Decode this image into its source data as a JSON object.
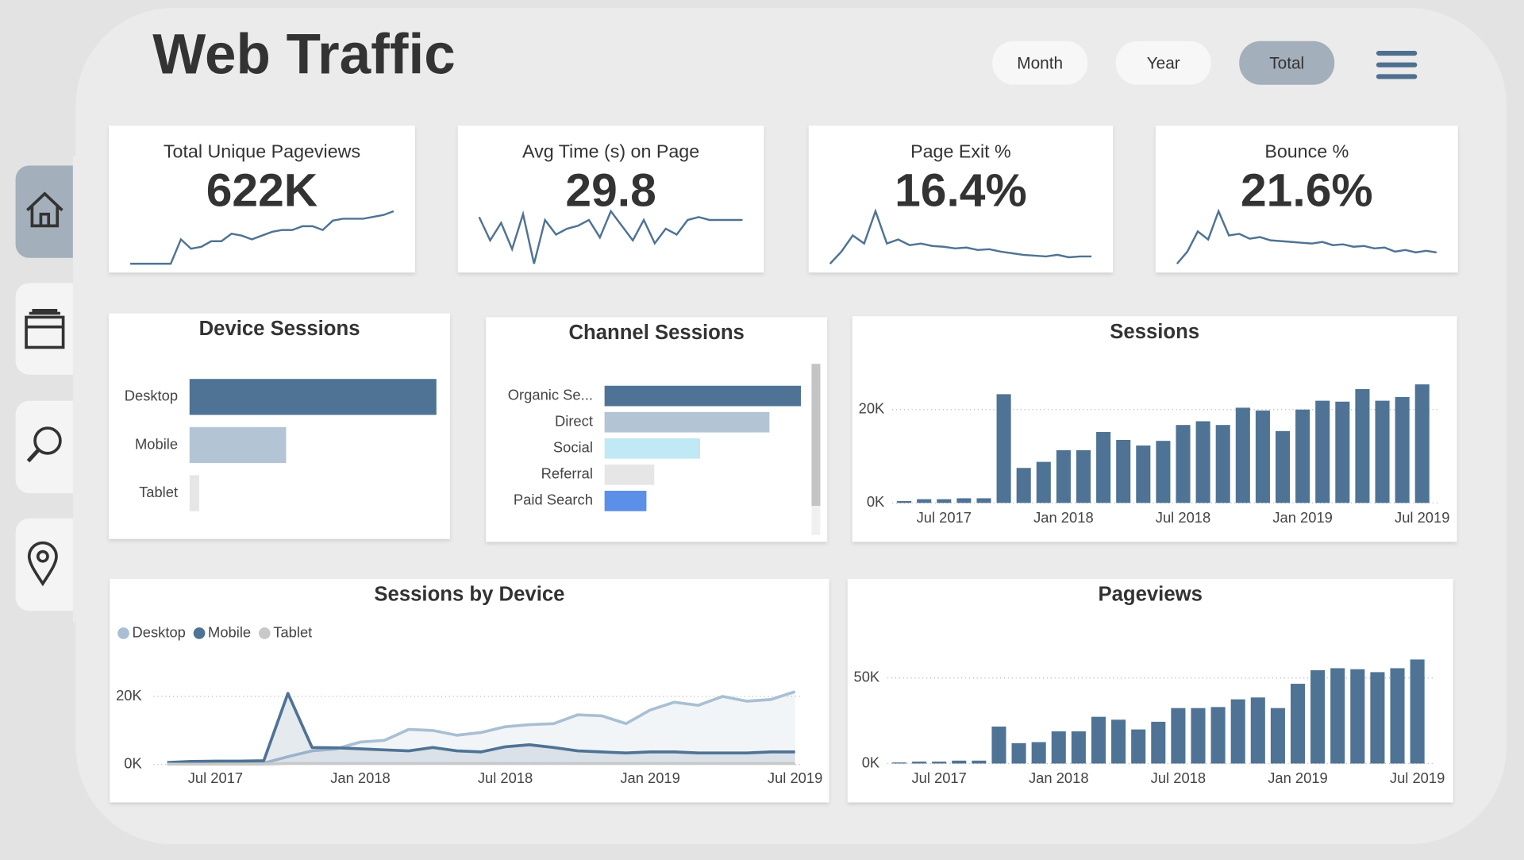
{
  "header": {
    "title": "Web Traffic",
    "buttons": [
      "Month",
      "Year",
      "Total"
    ],
    "selected": "Total"
  },
  "kpis": [
    {
      "label": "Total Unique Pageviews",
      "value": "622K",
      "trend": [
        1,
        1,
        1,
        1,
        1,
        14,
        9,
        10,
        13,
        13,
        17,
        16,
        14,
        16,
        18,
        19,
        19,
        21,
        21,
        19,
        24,
        25,
        25,
        25,
        26,
        27,
        29
      ]
    },
    {
      "label": "Avg Time (s) on Page",
      "value": "29.8",
      "trend": [
        32,
        24,
        30,
        21,
        33,
        16,
        31,
        26,
        28,
        29,
        31,
        25,
        34,
        29,
        24,
        31,
        23,
        28,
        26,
        31,
        32,
        31,
        31,
        31,
        31
      ]
    },
    {
      "label": "Page Exit %",
      "value": "16.4%",
      "trend": [
        5,
        20,
        40,
        30,
        70,
        30,
        35,
        28,
        30,
        27,
        26,
        24,
        25,
        22,
        23,
        20,
        18,
        16,
        15,
        14,
        16,
        13,
        14,
        14
      ]
    },
    {
      "label": "Bounce %",
      "value": "21.6%",
      "trend": [
        5,
        20,
        45,
        35,
        70,
        40,
        42,
        36,
        38,
        34,
        33,
        32,
        31,
        30,
        32,
        28,
        29,
        26,
        27,
        24,
        25,
        20,
        22,
        19,
        21,
        19
      ]
    }
  ],
  "chart_data": [
    {
      "type": "hbar",
      "title": "Device Sessions",
      "categories": [
        "Desktop",
        "Mobile",
        "Tablet"
      ],
      "values": [
        230000,
        90000,
        9000
      ],
      "colors": [
        "#4f7394",
        "#b3c5d5",
        "#e6e6e6"
      ]
    },
    {
      "type": "hbar",
      "title": "Channel Sessions",
      "categories": [
        "Organic Se...",
        "Direct",
        "Social",
        "Referral",
        "Paid Search"
      ],
      "values": [
        150000,
        126000,
        73000,
        38000,
        32000
      ],
      "colors": [
        "#4f7394",
        "#b3c5d5",
        "#c1e9f5",
        "#e6e6e6",
        "#5b8fe8"
      ]
    },
    {
      "type": "bar",
      "title": "Sessions",
      "x": [
        "2017-05",
        "2017-06",
        "2017-07",
        "2017-08",
        "2017-09",
        "2017-10",
        "2017-11",
        "2017-12",
        "2018-01",
        "2018-02",
        "2018-03",
        "2018-04",
        "2018-05",
        "2018-06",
        "2018-07",
        "2018-08",
        "2018-09",
        "2018-10",
        "2018-11",
        "2018-12",
        "2019-01",
        "2019-02",
        "2019-03",
        "2019-04",
        "2019-05",
        "2019-06",
        "2019-07"
      ],
      "values": [
        400,
        800,
        800,
        1000,
        1000,
        23300,
        7500,
        8800,
        11300,
        11300,
        15200,
        13500,
        12300,
        13300,
        16700,
        17500,
        16700,
        20400,
        19800,
        15400,
        20000,
        21900,
        21700,
        24400,
        21900,
        22700,
        25400
      ],
      "color": "#4f7394",
      "ylim": [
        0,
        26000
      ],
      "yticks": [
        {
          "value": 0,
          "label": "0K"
        },
        {
          "value": 20000,
          "label": "20K"
        }
      ],
      "xticks": [
        {
          "value": "2017-07",
          "label": "Jul 2017"
        },
        {
          "value": "2018-01",
          "label": "Jan 2018"
        },
        {
          "value": "2018-07",
          "label": "Jul 2018"
        },
        {
          "value": "2019-01",
          "label": "Jan 2019"
        },
        {
          "value": "2019-07",
          "label": "Jul 2019"
        }
      ],
      "grid": true
    },
    {
      "type": "line",
      "title": "Sessions by Device",
      "x": [
        "2017-05",
        "2017-06",
        "2017-07",
        "2017-08",
        "2017-09",
        "2017-10",
        "2017-11",
        "2017-12",
        "2018-01",
        "2018-02",
        "2018-03",
        "2018-04",
        "2018-05",
        "2018-06",
        "2018-07",
        "2018-08",
        "2018-09",
        "2018-10",
        "2018-11",
        "2018-12",
        "2019-01",
        "2019-02",
        "2019-03",
        "2019-04",
        "2019-05",
        "2019-06",
        "2019-07"
      ],
      "series": [
        {
          "name": "Desktop",
          "color": "#a9bfd3",
          "values": [
            200,
            300,
            300,
            400,
            400,
            2300,
            4000,
            4600,
            6600,
            7100,
            10300,
            10000,
            8600,
            9400,
            11100,
            11700,
            12000,
            14600,
            14300,
            12000,
            16000,
            18300,
            17400,
            20000,
            18600,
            19100,
            21400
          ]
        },
        {
          "name": "Mobile",
          "color": "#4f7394",
          "values": [
            600,
            900,
            1000,
            1000,
            1100,
            20900,
            5000,
            4900,
            4600,
            4300,
            4000,
            5000,
            4000,
            3700,
            5200,
            5800,
            5000,
            4000,
            3700,
            3400,
            3700,
            3700,
            3400,
            3400,
            3400,
            3700,
            3700
          ]
        },
        {
          "name": "Tablet",
          "color": "#c8c8c8",
          "values": [
            100,
            100,
            100,
            100,
            100,
            300,
            300,
            300,
            300,
            300,
            300,
            300,
            300,
            300,
            300,
            300,
            300,
            300,
            300,
            300,
            300,
            300,
            300,
            300,
            300,
            300,
            300
          ]
        }
      ],
      "ylim": [
        0,
        25000
      ],
      "yticks": [
        {
          "value": 0,
          "label": "0K"
        },
        {
          "value": 20000,
          "label": "20K"
        }
      ],
      "xticks": [
        {
          "value": "2017-07",
          "label": "Jul 2017"
        },
        {
          "value": "2018-01",
          "label": "Jan 2018"
        },
        {
          "value": "2018-07",
          "label": "Jul 2018"
        },
        {
          "value": "2019-01",
          "label": "Jan 2019"
        },
        {
          "value": "2019-07",
          "label": "Jul 2019"
        }
      ],
      "grid": true,
      "legend": "top-left"
    },
    {
      "type": "bar",
      "title": "Pageviews",
      "x": [
        "2017-05",
        "2017-06",
        "2017-07",
        "2017-08",
        "2017-09",
        "2017-10",
        "2017-11",
        "2017-12",
        "2018-01",
        "2018-02",
        "2018-03",
        "2018-04",
        "2018-05",
        "2018-06",
        "2018-07",
        "2018-08",
        "2018-09",
        "2018-10",
        "2018-11",
        "2018-12",
        "2019-01",
        "2019-02",
        "2019-03",
        "2019-04",
        "2019-05",
        "2019-06",
        "2019-07"
      ],
      "values": [
        600,
        1100,
        1100,
        1700,
        1700,
        21600,
        11900,
        12500,
        18800,
        18800,
        27300,
        25600,
        19900,
        24400,
        32400,
        32400,
        33000,
        37500,
        38600,
        32400,
        46600,
        54500,
        55700,
        55100,
        53400,
        55700,
        60800
      ],
      "color": "#4f7394",
      "ylim": [
        0,
        65000
      ],
      "yticks": [
        {
          "value": 0,
          "label": "0K"
        },
        {
          "value": 50000,
          "label": "50K"
        }
      ],
      "xticks": [
        {
          "value": "2017-07",
          "label": "Jul 2017"
        },
        {
          "value": "2018-01",
          "label": "Jan 2018"
        },
        {
          "value": "2018-07",
          "label": "Jul 2018"
        },
        {
          "value": "2019-01",
          "label": "Jan 2019"
        },
        {
          "value": "2019-07",
          "label": "Jul 2019"
        }
      ],
      "grid": true
    }
  ]
}
